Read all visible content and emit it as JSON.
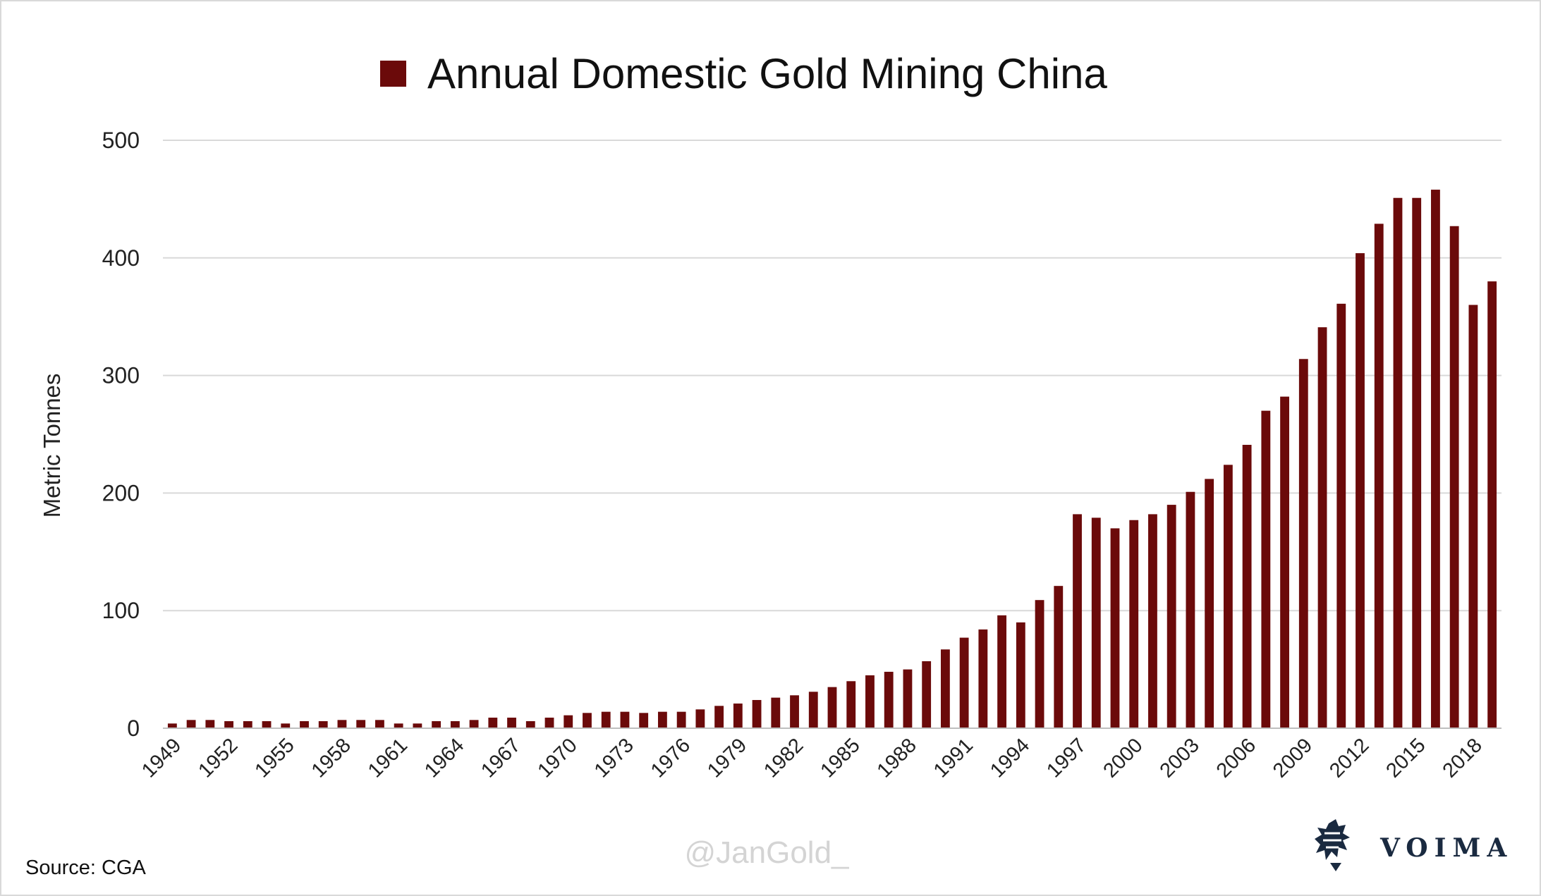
{
  "chart_data": {
    "type": "bar",
    "title": "Annual Domestic Gold Mining China",
    "legend": {
      "label": "Annual Domestic Gold Mining China",
      "color": "#6b0a0a",
      "placement": "top-center"
    },
    "ylabel": "Metric Tonnes",
    "xlabel": "",
    "ylim": [
      0,
      500
    ],
    "yticks": [
      "0",
      "100",
      "200",
      "300",
      "400",
      "500"
    ],
    "ytick_values": [
      0,
      100,
      200,
      300,
      400,
      500
    ],
    "grid": true,
    "categories": [
      "1949",
      "1950",
      "1951",
      "1952",
      "1953",
      "1954",
      "1955",
      "1956",
      "1957",
      "1958",
      "1959",
      "1960",
      "1961",
      "1962",
      "1963",
      "1964",
      "1965",
      "1966",
      "1967",
      "1968",
      "1969",
      "1970",
      "1971",
      "1972",
      "1973",
      "1974",
      "1975",
      "1976",
      "1977",
      "1978",
      "1979",
      "1980",
      "1981",
      "1982",
      "1983",
      "1984",
      "1985",
      "1986",
      "1987",
      "1988",
      "1989",
      "1990",
      "1991",
      "1992",
      "1993",
      "1994",
      "1995",
      "1996",
      "1997",
      "1998",
      "1999",
      "2000",
      "2001",
      "2002",
      "2003",
      "2004",
      "2005",
      "2006",
      "2007",
      "2008",
      "2009",
      "2010",
      "2011",
      "2012",
      "2013",
      "2014",
      "2015",
      "2016",
      "2017",
      "2018",
      "2019"
    ],
    "xtick_labels": [
      "1949",
      "1952",
      "1955",
      "1958",
      "1961",
      "1964",
      "1967",
      "1970",
      "1973",
      "1976",
      "1979",
      "1982",
      "1985",
      "1988",
      "1991",
      "1994",
      "1997",
      "2000",
      "2003",
      "2006",
      "2009",
      "2012",
      "2015",
      "2018"
    ],
    "series": [
      {
        "name": "Annual Domestic Gold Mining China",
        "color": "#6b0a0a",
        "values": [
          4,
          7,
          7,
          6,
          6,
          6,
          4,
          6,
          6,
          7,
          7,
          7,
          4,
          4,
          6,
          6,
          7,
          9,
          9,
          6,
          9,
          11,
          13,
          14,
          14,
          13,
          14,
          14,
          16,
          19,
          21,
          24,
          26,
          28,
          31,
          35,
          40,
          45,
          48,
          50,
          57,
          67,
          77,
          84,
          96,
          90,
          109,
          121,
          182,
          179,
          170,
          177,
          182,
          190,
          201,
          212,
          224,
          241,
          270,
          282,
          314,
          341,
          361,
          404,
          429,
          451,
          451,
          458,
          427,
          360,
          380
        ]
      }
    ]
  },
  "footer": {
    "source": "Source: CGA",
    "watermark": "@JanGold_",
    "brand": "VOIMA",
    "brand_logo_icon": "lion-rampant-logo-icon"
  }
}
